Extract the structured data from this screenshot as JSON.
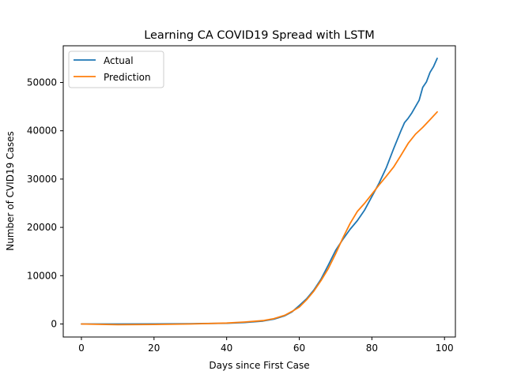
{
  "chart_data": {
    "type": "line",
    "title": "Learning CA COVID19 Spread with LSTM",
    "xlabel": "Days since First Case",
    "ylabel": "Number of CVID19 Cases",
    "xlim": [
      -5,
      103
    ],
    "ylim": [
      -2700,
      57600
    ],
    "x_ticks": [
      0,
      20,
      40,
      60,
      80,
      100
    ],
    "x_tick_labels": [
      "0",
      "20",
      "40",
      "60",
      "80",
      "100"
    ],
    "y_ticks": [
      0,
      10000,
      20000,
      30000,
      40000,
      50000
    ],
    "y_tick_labels": [
      "0",
      "10000",
      "20000",
      "30000",
      "40000",
      "50000"
    ],
    "grid": false,
    "legend_position": "top-left",
    "series": [
      {
        "name": "Actual",
        "color": "#1f77b4",
        "x": [
          0,
          10,
          20,
          30,
          40,
          45,
          50,
          53,
          56,
          58,
          60,
          62,
          64,
          66,
          68,
          70,
          72,
          74,
          76,
          78,
          80,
          82,
          84,
          86,
          88,
          89,
          90,
          91,
          92,
          93,
          94,
          95,
          96,
          97,
          98
        ],
        "y": [
          0,
          0,
          20,
          60,
          150,
          300,
          600,
          1000,
          1700,
          2500,
          3800,
          5200,
          7000,
          9300,
          12200,
          15200,
          17500,
          19600,
          21400,
          23600,
          26400,
          29200,
          32400,
          36300,
          40000,
          41700,
          42600,
          43700,
          45000,
          46300,
          49000,
          50100,
          52100,
          53300,
          55000
        ]
      },
      {
        "name": "Prediction",
        "color": "#ff7f0e",
        "x": [
          0,
          10,
          20,
          30,
          40,
          45,
          50,
          53,
          56,
          58,
          60,
          62,
          64,
          66,
          68,
          70,
          72,
          74,
          76,
          78,
          80,
          82,
          84,
          86,
          88,
          90,
          92,
          94,
          96,
          98
        ],
        "y": [
          0,
          -150,
          -100,
          0,
          200,
          400,
          700,
          1100,
          1800,
          2600,
          3500,
          5000,
          6800,
          9000,
          11500,
          14500,
          17800,
          20800,
          23300,
          25000,
          26900,
          28800,
          30600,
          32500,
          34900,
          37400,
          39300,
          40700,
          42300,
          43900
        ]
      }
    ]
  }
}
